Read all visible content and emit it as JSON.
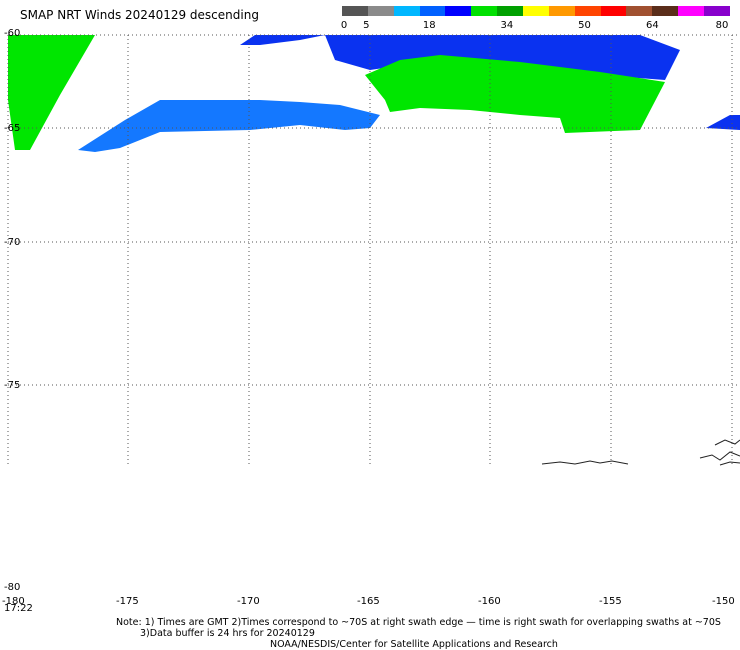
{
  "title": "SMAP NRT Winds  20240129 descending",
  "colorbar": {
    "labels": [
      "0",
      "5",
      "18",
      "34",
      "50",
      "64",
      "80"
    ],
    "colors": [
      "#555555",
      "#8a8a8a",
      "#00b7ff",
      "#0060ff",
      "#0000ff",
      "#00e000",
      "#00a000",
      "#ffff00",
      "#ff9900",
      "#ff4400",
      "#ff0000",
      "#a05030",
      "#5a2d1a",
      "#ff00ff",
      "#8800cc"
    ]
  },
  "map": {
    "lon_ticks": [
      "-180",
      "-175",
      "-170",
      "-165",
      "-160",
      "-155",
      "-150"
    ],
    "lat_ticks": [
      "-60",
      "-65",
      "-70",
      "-75",
      "-80"
    ],
    "time_label": "17:22",
    "wind_colors": {
      "green": "#00e600",
      "blue": "#0a32f0",
      "light_blue": "#1478ff"
    }
  },
  "notes": {
    "line1": "Note: 1) Times are GMT 2)Times correspond to ~70S at right swath edge — time is right swath for overlapping swaths at ~70S",
    "line2": "3)Data buffer is 24 hrs for 20240129",
    "credit": "NOAA/NESDIS/Center for Satellite Applications and Research"
  }
}
